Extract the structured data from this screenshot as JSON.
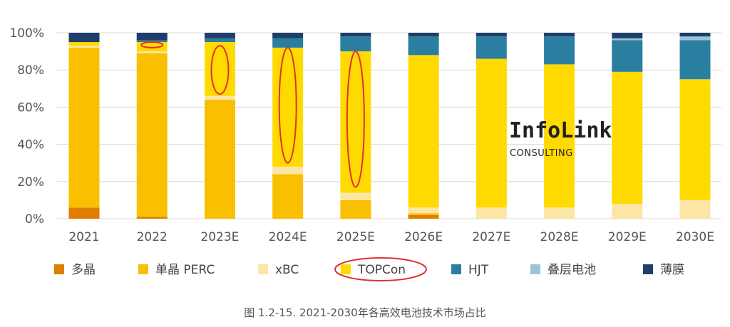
{
  "chart_data": {
    "type": "bar",
    "stacked": true,
    "categories": [
      "2021",
      "2022",
      "2023E",
      "2024E",
      "2025E",
      "2026E",
      "2027E",
      "2028E",
      "2029E",
      "2030E"
    ],
    "yticks": [
      "0%",
      "20%",
      "40%",
      "60%",
      "80%",
      "100%"
    ],
    "ylim": [
      0,
      100
    ],
    "grid": true,
    "legend_position": "bottom",
    "series": [
      {
        "name": "多晶",
        "color": "#E07E00",
        "values": [
          6,
          1,
          0,
          0,
          0,
          2,
          0,
          0,
          0,
          0
        ]
      },
      {
        "name": "单晶 PERC",
        "color": "#F8C000",
        "values": [
          86,
          88,
          64,
          24,
          10,
          1,
          0,
          0,
          0,
          0
        ]
      },
      {
        "name": "xBC",
        "color": "#FCE6A6",
        "values": [
          1,
          1,
          2,
          4,
          4,
          3,
          6,
          6,
          8,
          10
        ]
      },
      {
        "name": "TOPCon",
        "color": "#FFDA00",
        "values": [
          2,
          5,
          29,
          64,
          76,
          82,
          80,
          77,
          71,
          65
        ]
      },
      {
        "name": "HJT",
        "color": "#2A7FA0",
        "values": [
          0,
          1,
          2,
          5,
          8,
          10,
          12,
          15,
          17,
          21
        ]
      },
      {
        "name": "叠层电池",
        "color": "#9BC5D5",
        "values": [
          0,
          0,
          0,
          0,
          0,
          0,
          0,
          0,
          1,
          2
        ]
      },
      {
        "name": "薄膜",
        "color": "#1F3F6A",
        "values": [
          5,
          4,
          3,
          3,
          2,
          2,
          2,
          2,
          3,
          2
        ]
      }
    ],
    "annotations": [
      {
        "type": "ellipse",
        "category": "2022",
        "y_range": [
          92,
          95
        ],
        "color": "#E03030"
      },
      {
        "type": "ellipse",
        "category": "2023E",
        "y_range": [
          67,
          93
        ],
        "color": "#E03030"
      },
      {
        "type": "ellipse",
        "category": "2024E",
        "y_range": [
          30,
          92
        ],
        "color": "#E03030"
      },
      {
        "type": "ellipse",
        "category": "2025E",
        "y_range": [
          17,
          90
        ],
        "color": "#E03030"
      },
      {
        "type": "ellipse",
        "target": "legend:TOPCon",
        "color": "#E03030"
      }
    ]
  },
  "watermark": {
    "title": "InfoLink",
    "subtitle": "CONSULTING"
  },
  "caption": "图 1.2-15. 2021-2030年各高效电池技术市场占比"
}
